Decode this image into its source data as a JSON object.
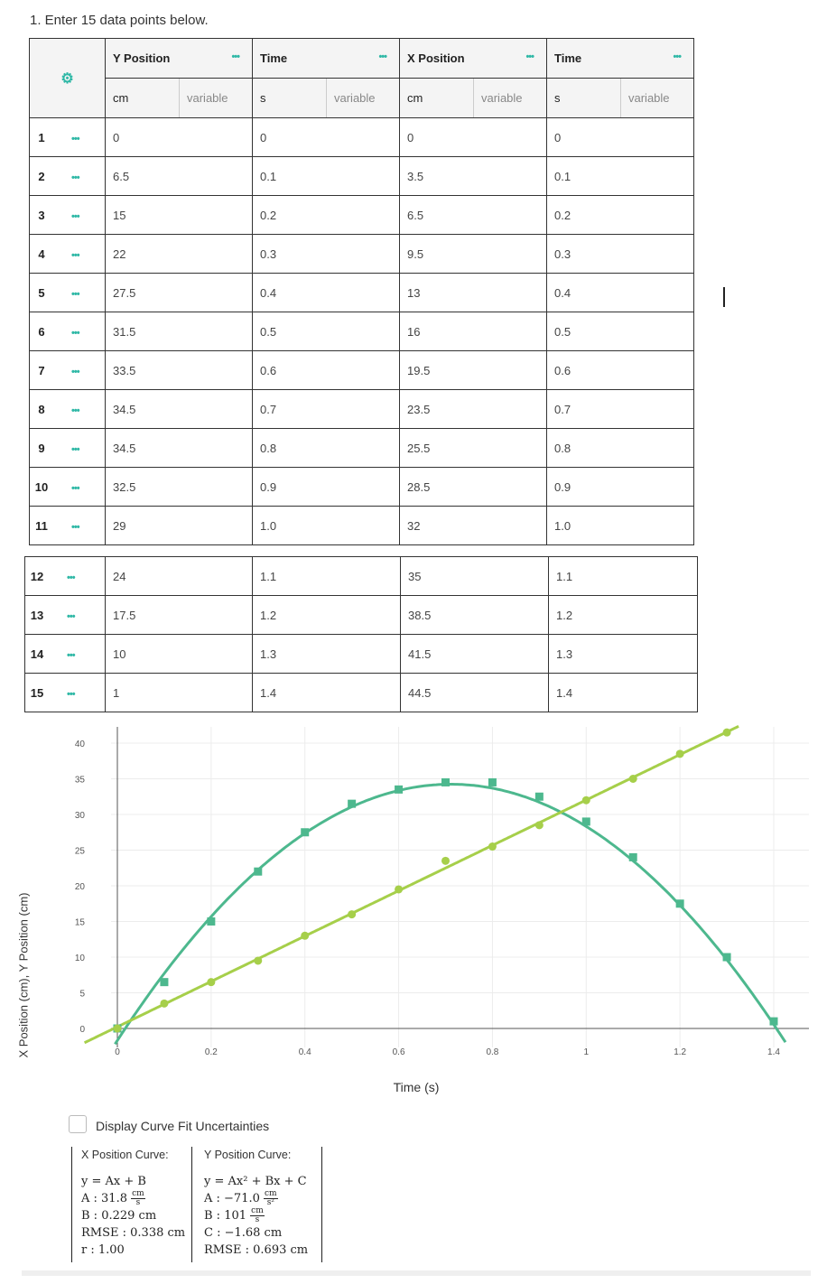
{
  "instruction": "1. Enter 15 data points below.",
  "table": {
    "columns": [
      {
        "name": "Y Position",
        "unit": "cm",
        "variable_label": "variable"
      },
      {
        "name": "Time",
        "unit": "s",
        "variable_label": "variable"
      },
      {
        "name": "X Position",
        "unit": "cm",
        "variable_label": "variable"
      },
      {
        "name": "Time",
        "unit": "s",
        "variable_label": "variable"
      }
    ],
    "row_menu_icon": "ellipsis-icon",
    "settings_icon": "gear-icon",
    "rows": [
      {
        "index": "1",
        "values": [
          "0",
          "0",
          "0",
          "0"
        ]
      },
      {
        "index": "2",
        "values": [
          "6.5",
          "0.1",
          "3.5",
          "0.1"
        ]
      },
      {
        "index": "3",
        "values": [
          "15",
          "0.2",
          "6.5",
          "0.2"
        ]
      },
      {
        "index": "4",
        "values": [
          "22",
          "0.3",
          "9.5",
          "0.3"
        ]
      },
      {
        "index": "5",
        "values": [
          "27.5",
          "0.4",
          "13",
          "0.4"
        ]
      },
      {
        "index": "6",
        "values": [
          "31.5",
          "0.5",
          "16",
          "0.5"
        ]
      },
      {
        "index": "7",
        "values": [
          "33.5",
          "0.6",
          "19.5",
          "0.6"
        ]
      },
      {
        "index": "8",
        "values": [
          "34.5",
          "0.7",
          "23.5",
          "0.7"
        ]
      },
      {
        "index": "9",
        "values": [
          "34.5",
          "0.8",
          "25.5",
          "0.8"
        ]
      },
      {
        "index": "10",
        "values": [
          "32.5",
          "0.9",
          "28.5",
          "0.9"
        ]
      },
      {
        "index": "11",
        "values": [
          "29",
          "1.0",
          "32",
          "1.0"
        ]
      },
      {
        "index": "12",
        "values": [
          "24",
          "1.1",
          "35",
          "1.1"
        ]
      },
      {
        "index": "13",
        "values": [
          "17.5",
          "1.2",
          "38.5",
          "1.2"
        ]
      },
      {
        "index": "14",
        "values": [
          "10",
          "1.3",
          "41.5",
          "1.3"
        ]
      },
      {
        "index": "15",
        "values": [
          "1",
          "1.4",
          "44.5",
          "1.4"
        ]
      }
    ]
  },
  "chart_data": {
    "type": "scatter",
    "xlabel": "Time (s)",
    "ylabel": "X Position (cm), Y Position (cm)",
    "xlim": [
      -0.07,
      1.45
    ],
    "ylim": [
      -2,
      42
    ],
    "xticks": [
      "0",
      "0.2",
      "0.4",
      "0.6",
      "0.8",
      "1",
      "1.2",
      "1.4"
    ],
    "yticks": [
      "0",
      "5",
      "10",
      "15",
      "20",
      "25",
      "30",
      "35",
      "40"
    ],
    "grid": true,
    "series": [
      {
        "marker": "square",
        "color": "#4db88e",
        "x": [
          0,
          0.1,
          0.2,
          0.3,
          0.4,
          0.5,
          0.6,
          0.7,
          0.8,
          0.9,
          1.0,
          1.1,
          1.2,
          1.3,
          1.4
        ],
        "y": [
          0,
          6.5,
          15,
          22,
          27.5,
          31.5,
          33.5,
          34.5,
          34.5,
          32.5,
          29,
          24,
          17.5,
          10,
          1
        ],
        "fit": {
          "kind": "quadratic",
          "A": -71.0,
          "B": 101,
          "C": -1.68
        }
      },
      {
        "marker": "circle",
        "color": "#a6cf4a",
        "x": [
          0,
          0.1,
          0.2,
          0.3,
          0.4,
          0.5,
          0.6,
          0.7,
          0.8,
          0.9,
          1.0,
          1.1,
          1.2,
          1.3,
          1.4
        ],
        "y": [
          0,
          3.5,
          6.5,
          9.5,
          13,
          16,
          19.5,
          23.5,
          25.5,
          28.5,
          32,
          35,
          38.5,
          41.5,
          44.5
        ],
        "fit": {
          "kind": "linear",
          "A": 31.8,
          "B": 0.229
        }
      }
    ]
  },
  "uncertainty_checkbox": {
    "label": "Display Curve Fit Uncertainties",
    "checked": false
  },
  "fits": {
    "x": {
      "title": "X Position Curve:",
      "equation": "y = Ax + B",
      "a_label": "A : 31.8",
      "a_unit_num": "cm",
      "a_unit_den": "s",
      "b_line": "B : 0.229 cm",
      "rmse_line": "RMSE : 0.338 cm",
      "r_line": "r : 1.00"
    },
    "y": {
      "title": "Y Position Curve:",
      "equation": "y = Ax² + Bx + C",
      "a_label": "A : −71.0",
      "a_unit_num": "cm",
      "a_unit_den": "s²",
      "b_label": "B : 101",
      "b_unit_num": "cm",
      "b_unit_den": "s",
      "c_line": "C : −1.68 cm",
      "rmse_line": "RMSE : 0.693 cm"
    }
  }
}
